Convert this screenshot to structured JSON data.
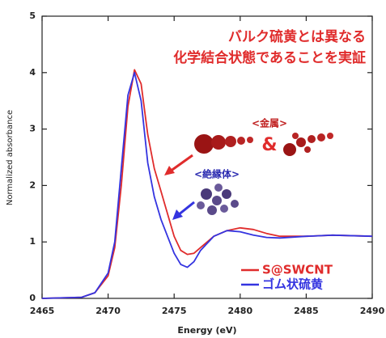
{
  "chart_data": {
    "type": "line",
    "xlabel": "Energy (eV)",
    "ylabel": "Normalized absorbance",
    "x": [
      2465,
      2468,
      2469,
      2470,
      2470.5,
      2471,
      2471.5,
      2472,
      2472.5,
      2473,
      2473.5,
      2474,
      2474.5,
      2475,
      2475.5,
      2476,
      2476.5,
      2477,
      2478,
      2479,
      2480,
      2481,
      2482,
      2483,
      2485,
      2487,
      2490
    ],
    "series": [
      {
        "name": "S@SWCNT",
        "color": "#e02c2c",
        "values": [
          0,
          0.02,
          0.1,
          0.4,
          0.9,
          2.0,
          3.4,
          4.05,
          3.8,
          2.9,
          2.3,
          1.9,
          1.5,
          1.1,
          0.85,
          0.78,
          0.8,
          0.9,
          1.1,
          1.2,
          1.25,
          1.22,
          1.15,
          1.1,
          1.1,
          1.12,
          1.1
        ]
      },
      {
        "name": "ゴム状硫黄",
        "color": "#3434e0",
        "values": [
          0,
          0.02,
          0.1,
          0.45,
          1.0,
          2.3,
          3.6,
          4.0,
          3.5,
          2.4,
          1.8,
          1.4,
          1.1,
          0.8,
          0.6,
          0.55,
          0.65,
          0.85,
          1.1,
          1.2,
          1.18,
          1.12,
          1.08,
          1.07,
          1.1,
          1.12,
          1.1
        ]
      }
    ],
    "xlim": [
      2465,
      2490
    ],
    "xticks": [
      2465,
      2470,
      2475,
      2480,
      2485,
      2490
    ],
    "ylim": [
      0,
      5
    ],
    "yticks": [
      0,
      1,
      2,
      3,
      4,
      5
    ],
    "annotations": [
      "バルク硫黄とは異なる",
      "化学結合状態であることを実証",
      "<金属>",
      "&",
      "<絶縁体>"
    ]
  }
}
